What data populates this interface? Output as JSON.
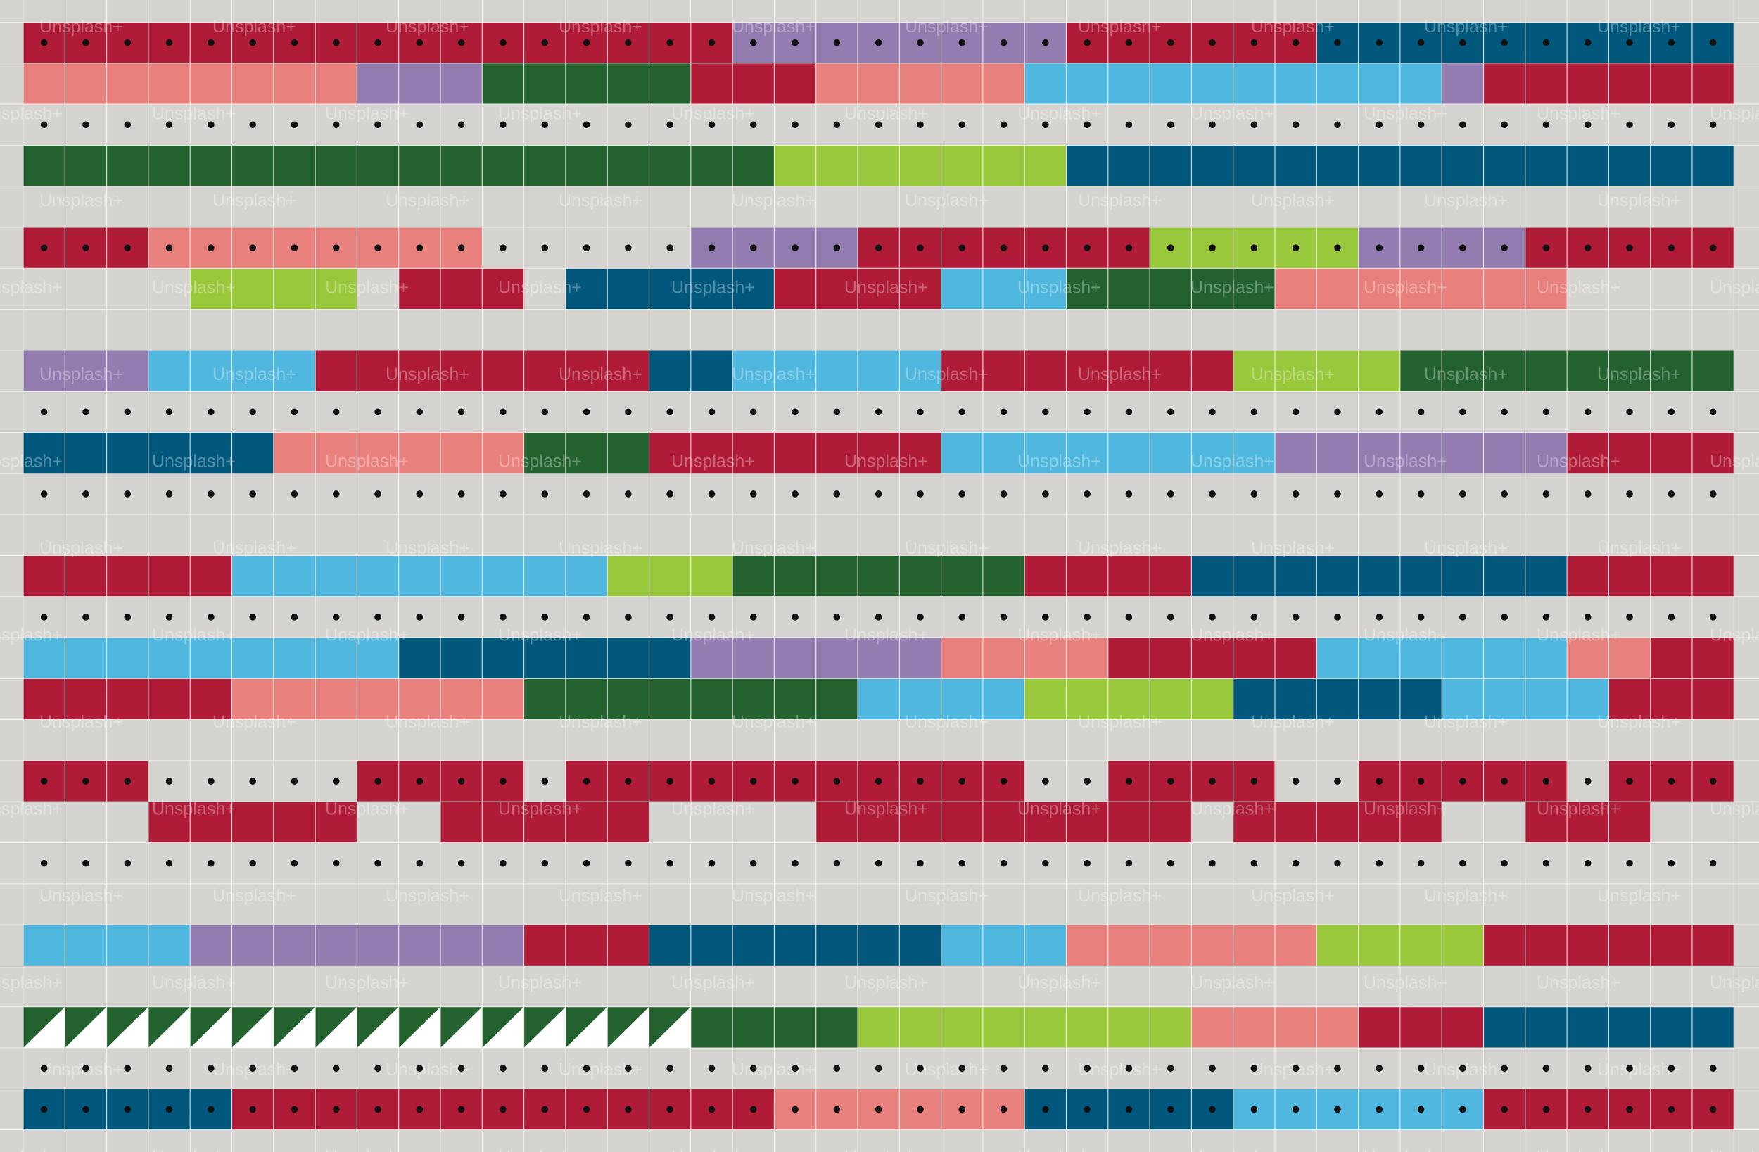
{
  "watermark": {
    "text": "Unsplash+"
  },
  "colors": {
    "background": "#d6d4d0",
    "gridline": "#f2f1ee",
    "dot": "#111111",
    "watermark": "#ffffff",
    "palette": {
      "R": "#b01c38",
      "P": "#e8807e",
      "V": "#937db0",
      "G": "#23622e",
      "L": "#9ac83d",
      "N": "#02587c",
      "S": "#50b8de"
    }
  },
  "pattern": {
    "columns": 41,
    "rows": [
      {
        "dots": true,
        "segments": [
          [
            "R",
            17
          ],
          [
            "V",
            8
          ],
          [
            "R",
            6
          ],
          [
            "N",
            10
          ]
        ]
      },
      {
        "dots": false,
        "segments": [
          [
            "P",
            8
          ],
          [
            "V",
            3
          ],
          [
            "G",
            5
          ],
          [
            "R",
            3
          ],
          [
            "P",
            5
          ],
          [
            "S",
            10
          ],
          [
            "V",
            1
          ],
          [
            "R",
            6
          ]
        ]
      },
      {
        "dots": true,
        "segments": [
          [
            "_",
            41
          ]
        ]
      },
      {
        "dots": false,
        "segments": [
          [
            "G",
            18
          ],
          [
            "L",
            7
          ],
          [
            "N",
            16
          ]
        ]
      },
      {
        "dots": false,
        "segments": [
          [
            "_",
            41
          ]
        ]
      },
      {
        "dots": true,
        "segments": [
          [
            "R",
            3
          ],
          [
            "P",
            8
          ],
          [
            "_",
            5
          ],
          [
            "V",
            4
          ],
          [
            "R",
            7
          ],
          [
            "L",
            5
          ],
          [
            "V",
            4
          ],
          [
            "R",
            5
          ]
        ]
      },
      {
        "dots": false,
        "segments": [
          [
            "_",
            4
          ],
          [
            "L",
            4
          ],
          [
            "_",
            1
          ],
          [
            "R",
            3
          ],
          [
            "_",
            1
          ],
          [
            "N",
            5
          ],
          [
            "R",
            4
          ],
          [
            "S",
            3
          ],
          [
            "G",
            5
          ],
          [
            "P",
            7
          ],
          [
            "_",
            4
          ]
        ]
      },
      {
        "dots": false,
        "segments": [
          [
            "_",
            41
          ]
        ]
      },
      {
        "dots": false,
        "segments": [
          [
            "V",
            3
          ],
          [
            "S",
            4
          ],
          [
            "R",
            8
          ],
          [
            "N",
            2
          ],
          [
            "S",
            5
          ],
          [
            "R",
            7
          ],
          [
            "L",
            4
          ],
          [
            "G",
            8
          ]
        ]
      },
      {
        "dots": true,
        "segments": [
          [
            "_",
            41
          ]
        ]
      },
      {
        "dots": false,
        "segments": [
          [
            "N",
            6
          ],
          [
            "P",
            6
          ],
          [
            "G",
            3
          ],
          [
            "R",
            7
          ],
          [
            "S",
            8
          ],
          [
            "V",
            7
          ],
          [
            "R",
            4
          ]
        ]
      },
      {
        "dots": true,
        "segments": [
          [
            "_",
            41
          ]
        ]
      },
      {
        "dots": false,
        "segments": [
          [
            "_",
            41
          ]
        ]
      },
      {
        "dots": false,
        "segments": [
          [
            "R",
            5
          ],
          [
            "S",
            9
          ],
          [
            "L",
            3
          ],
          [
            "G",
            7
          ],
          [
            "R",
            4
          ],
          [
            "N",
            9
          ],
          [
            "R",
            4
          ]
        ]
      },
      {
        "dots": true,
        "segments": [
          [
            "_",
            41
          ]
        ]
      },
      {
        "dots": false,
        "segments": [
          [
            "S",
            9
          ],
          [
            "N",
            7
          ],
          [
            "V",
            6
          ],
          [
            "P",
            4
          ],
          [
            "R",
            5
          ],
          [
            "S",
            6
          ],
          [
            "P",
            2
          ],
          [
            "R",
            2
          ]
        ]
      },
      {
        "dots": false,
        "segments": [
          [
            "R",
            5
          ],
          [
            "P",
            7
          ],
          [
            "G",
            8
          ],
          [
            "S",
            4
          ],
          [
            "L",
            5
          ],
          [
            "N",
            5
          ],
          [
            "S",
            4
          ],
          [
            "R",
            3
          ]
        ]
      },
      {
        "dots": false,
        "segments": [
          [
            "_",
            41
          ]
        ]
      },
      {
        "dots": true,
        "segments": [
          [
            "R",
            3
          ],
          [
            "_",
            5
          ],
          [
            "R",
            4
          ],
          [
            "_",
            1
          ],
          [
            "R",
            11
          ],
          [
            "_",
            2
          ],
          [
            "R",
            4
          ],
          [
            "_",
            2
          ],
          [
            "R",
            5
          ],
          [
            "_",
            1
          ],
          [
            "R",
            3
          ]
        ]
      },
      {
        "dots": false,
        "segments": [
          [
            "_",
            3
          ],
          [
            "R",
            5
          ],
          [
            "_",
            2
          ],
          [
            "R",
            5
          ],
          [
            "_",
            4
          ],
          [
            "R",
            9
          ],
          [
            "_",
            1
          ],
          [
            "R",
            5
          ],
          [
            "_",
            2
          ],
          [
            "R",
            3
          ],
          [
            "_",
            2
          ]
        ]
      },
      {
        "dots": true,
        "segments": [
          [
            "_",
            41
          ]
        ]
      },
      {
        "dots": false,
        "segments": [
          [
            "_",
            41
          ]
        ]
      },
      {
        "dots": false,
        "segments": [
          [
            "S",
            4
          ],
          [
            "V",
            8
          ],
          [
            "R",
            3
          ],
          [
            "N",
            7
          ],
          [
            "S",
            3
          ],
          [
            "P",
            6
          ],
          [
            "L",
            4
          ],
          [
            "R",
            6
          ]
        ]
      },
      {
        "dots": false,
        "segments": [
          [
            "_",
            41
          ]
        ]
      },
      {
        "dots": false,
        "segments": [
          [
            "GT",
            16
          ],
          [
            "G",
            4
          ],
          [
            "L",
            8
          ],
          [
            "P",
            4
          ],
          [
            "R",
            3
          ],
          [
            "N",
            6
          ]
        ]
      },
      {
        "dots": true,
        "segments": [
          [
            "_",
            41
          ]
        ]
      },
      {
        "dots": true,
        "segments": [
          [
            "N",
            5
          ],
          [
            "R",
            13
          ],
          [
            "P",
            6
          ],
          [
            "N",
            5
          ],
          [
            "S",
            6
          ],
          [
            "R",
            6
          ]
        ]
      }
    ]
  }
}
